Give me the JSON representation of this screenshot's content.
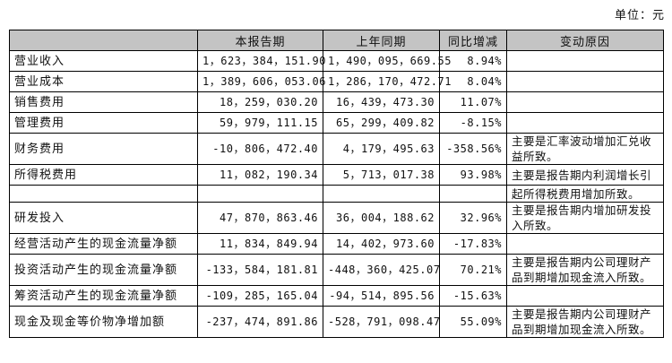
{
  "unit_label": "单位：元",
  "headers": [
    "",
    "本报告期",
    "上年同期",
    "同比增减",
    "变动原因"
  ],
  "rows": [
    {
      "item": "营业收入",
      "current": "1，623，384，151.90",
      "prior": "1，490，095，669.55",
      "change": "8.94%",
      "reason": ""
    },
    {
      "item": "营业成本",
      "current": "1，389，606，053.06",
      "prior": "1，286，170，472.71",
      "change": "8.04%",
      "reason": ""
    },
    {
      "item": "销售费用",
      "current": "18，259，030.20",
      "prior": "16，439，473.30",
      "change": "11.07%",
      "reason": ""
    },
    {
      "item": "管理费用",
      "current": "59，979，111.15",
      "prior": "65，299，409.82",
      "change": "-8.15%",
      "reason": ""
    },
    {
      "item": "财务费用",
      "current": "-10，806，472.40",
      "prior": "4，179，495.63",
      "change": "-358.56%",
      "reason": "主要是汇率波动增加汇兑收益所致。"
    },
    {
      "item": "所得税费用",
      "current": "11，082，190.34",
      "prior": "5，713，017.38",
      "change": "93.98%",
      "reason": "主要是报告期内利润增长引"
    },
    {
      "item": "",
      "current": "",
      "prior": "",
      "change": "",
      "reason": "起所得税费用增加所致。"
    },
    {
      "item": "研发投入",
      "current": "47，870，863.46",
      "prior": "36，004，188.62",
      "change": "32.96%",
      "reason": "主要是报告期内增加研发投入所致。"
    },
    {
      "item": "经营活动产生的现金流量净额",
      "current": "11，834，849.94",
      "prior": "14，402，973.60",
      "change": "-17.83%",
      "reason": ""
    },
    {
      "item": "投资活动产生的现金流量净额",
      "current": "-133，584，181.81",
      "prior": "-448，360，425.07",
      "change": "70.21%",
      "reason": "主要是报告期内公司理财产品到期增加现金流入所致。"
    },
    {
      "item": "筹资活动产生的现金流量净额",
      "current": "-109，285，165.04",
      "prior": "-94，514，895.56",
      "change": "-15.63%",
      "reason": ""
    },
    {
      "item": "现金及现金等价物净增加额",
      "current": "-237，474，891.86",
      "prior": "-528，791，098.47",
      "change": "55.09%",
      "reason": "主要是报告期内公司理财产品到期增加现金流入所致。"
    }
  ]
}
